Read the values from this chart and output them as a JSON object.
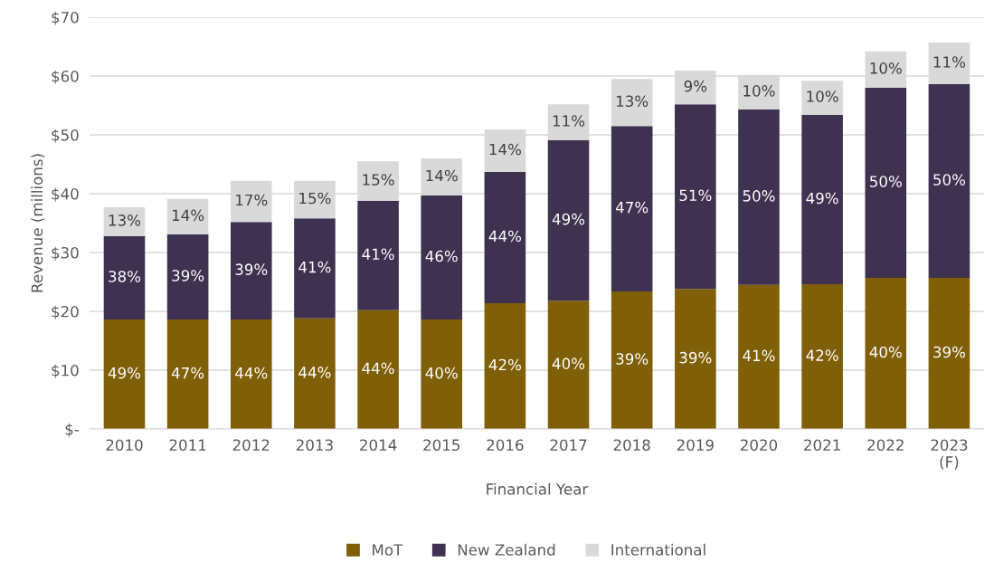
{
  "chart_data": {
    "type": "bar",
    "stacked": true,
    "xlabel": "Financial Year",
    "ylabel": "Revenue (millions)",
    "categories": [
      "2010",
      "2011",
      "2012",
      "2013",
      "2014",
      "2015",
      "2016",
      "2017",
      "2018",
      "2019",
      "2020",
      "2021",
      "2022",
      "2023\n(F)"
    ],
    "series": [
      {
        "name": "MoT",
        "color": "#7f5f08",
        "values": [
          18.6,
          18.6,
          18.6,
          18.8,
          20.2,
          18.6,
          21.4,
          21.8,
          23.4,
          23.8,
          24.5,
          24.6,
          25.7,
          25.7
        ]
      },
      {
        "name": "New Zealand",
        "color": "#3f3150",
        "values": [
          14.2,
          14.5,
          16.6,
          17.0,
          18.6,
          21.1,
          22.3,
          27.3,
          28.1,
          31.4,
          29.8,
          28.8,
          32.3,
          32.9
        ]
      },
      {
        "name": "International",
        "color": "#d9d9d9",
        "values": [
          4.9,
          6.0,
          7.0,
          6.4,
          6.7,
          6.3,
          7.2,
          6.1,
          8.0,
          5.7,
          5.9,
          5.8,
          6.2,
          7.1
        ]
      }
    ],
    "annotations": [
      "49%",
      "47%",
      "44%",
      "44%",
      "44%",
      "40%",
      "42%",
      "40%",
      "39%",
      "39%",
      "41%",
      "42%",
      "40%",
      "39%",
      "38%",
      "39%",
      "39%",
      "41%",
      "41%",
      "46%",
      "44%",
      "49%",
      "47%",
      "51%",
      "50%",
      "49%",
      "50%",
      "50%",
      "13%",
      "14%",
      "17%",
      "15%",
      "15%",
      "14%",
      "14%",
      "11%",
      "13%",
      "9%",
      "10%",
      "10%",
      "10%",
      "11%"
    ],
    "ylim": [
      0,
      70
    ],
    "yticks": [
      {
        "value": 0,
        "label": "$-"
      },
      {
        "value": 10,
        "label": "$10"
      },
      {
        "value": 20,
        "label": "$20"
      },
      {
        "value": 30,
        "label": "$30"
      },
      {
        "value": 40,
        "label": "$40"
      },
      {
        "value": 50,
        "label": "$50"
      },
      {
        "value": 60,
        "label": "$60"
      },
      {
        "value": 70,
        "label": "$70"
      }
    ],
    "grid": "y",
    "legend": "bottom"
  }
}
